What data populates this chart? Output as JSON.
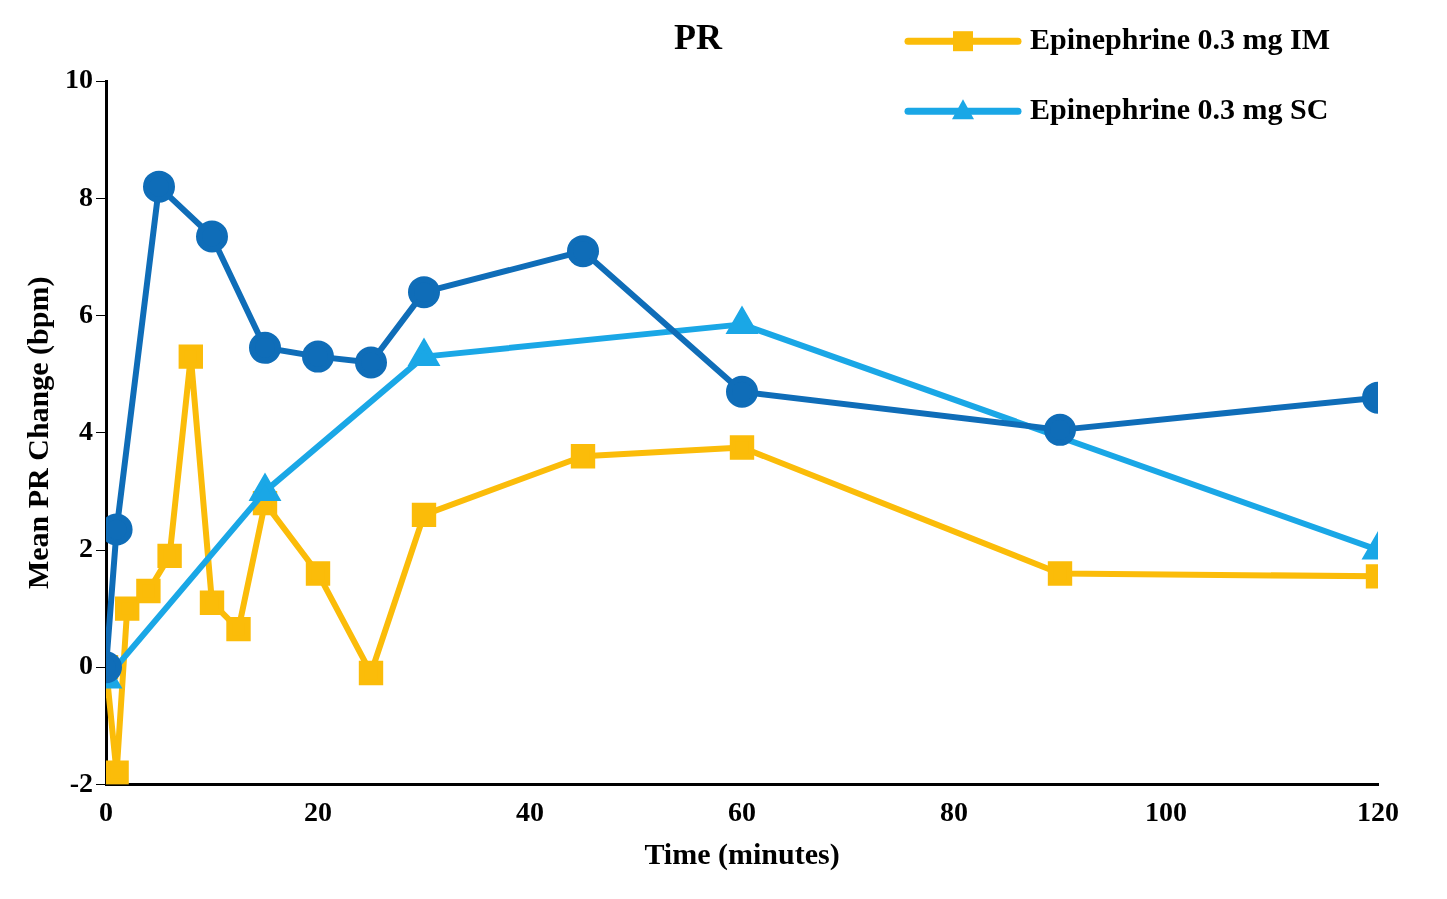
{
  "chart_data": {
    "type": "line",
    "title": "PR",
    "xlabel": "Time (minutes)",
    "ylabel": "Mean PR Change (bpm)",
    "xlim": [
      0,
      120
    ],
    "xticks": [
      0,
      20,
      40,
      60,
      80,
      100,
      120
    ],
    "ylim": [
      -2,
      10
    ],
    "yticks": [
      -2,
      0,
      2,
      4,
      6,
      8,
      10
    ],
    "grid": false,
    "legend": "top right",
    "line_style": "solid",
    "series": [
      {
        "name": "Epinephrine 0.3 mg IM",
        "color": "#fbbc09",
        "marker": "square",
        "x": [
          0,
          1,
          2,
          4,
          6,
          8,
          10,
          12.5,
          15,
          20,
          25,
          30,
          45,
          60,
          90,
          120
        ],
        "values": [
          0,
          -1.8,
          1.0,
          1.3,
          1.9,
          5.3,
          1.1,
          0.65,
          2.8,
          1.6,
          -0.1,
          2.6,
          3.6,
          3.75,
          1.6,
          1.55
        ]
      },
      {
        "name": "Epinephrine 0.3 mg SC",
        "color": "#1aa7e6",
        "marker": "triangle",
        "x": [
          0,
          15,
          30,
          60,
          120
        ],
        "values": [
          -0.2,
          3.0,
          5.3,
          5.85,
          2.0
        ]
      },
      {
        "color": "#0f6db8",
        "marker": "circle",
        "x": [
          0,
          1,
          5,
          10,
          15,
          20,
          25,
          30,
          45,
          60,
          90,
          120
        ],
        "values": [
          0,
          2.35,
          8.2,
          7.35,
          5.45,
          5.3,
          5.2,
          6.4,
          7.1,
          4.7,
          4.05,
          4.6
        ]
      }
    ]
  }
}
